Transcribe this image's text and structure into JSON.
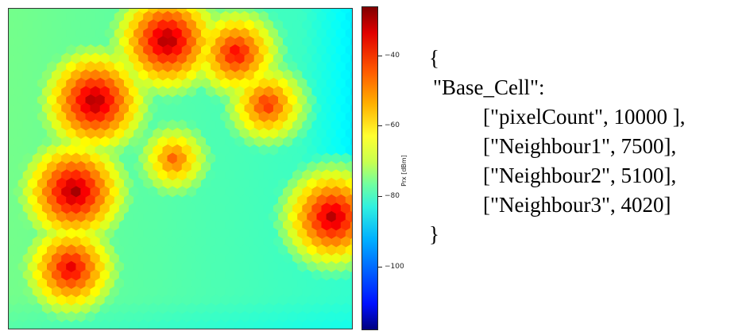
{
  "chart_data": {
    "type": "heatmap",
    "title": "",
    "xlabel": "",
    "ylabel": "",
    "colorbar": {
      "label": "Prx [dBm]",
      "ticks": [
        -40,
        -60,
        -80,
        -100
      ],
      "tick_labels": [
        "−40",
        "−60",
        "−80",
        "−100"
      ],
      "range": [
        -120,
        -28
      ],
      "colormap": "jet"
    },
    "hotspots": [
      {
        "x": 0.46,
        "y": 0.1,
        "peak": -30
      },
      {
        "x": 0.66,
        "y": 0.14,
        "peak": -38
      },
      {
        "x": 0.25,
        "y": 0.29,
        "peak": -30
      },
      {
        "x": 0.75,
        "y": 0.3,
        "peak": -42
      },
      {
        "x": 0.48,
        "y": 0.47,
        "peak": -47
      },
      {
        "x": 0.19,
        "y": 0.57,
        "peak": -30
      },
      {
        "x": 0.94,
        "y": 0.65,
        "peak": -32
      },
      {
        "x": 0.18,
        "y": 0.81,
        "peak": -36
      }
    ]
  },
  "json_text": {
    "open_brace": "{",
    "key_line": "\"Base_Cell\":",
    "rows": [
      "[\"pixelCount\", 10000 ],",
      "[\"Neighbour1\", 7500],",
      "[\"Neighbour2\", 5100],",
      "[\"Neighbour3\", 4020]"
    ],
    "close_brace": "}"
  }
}
